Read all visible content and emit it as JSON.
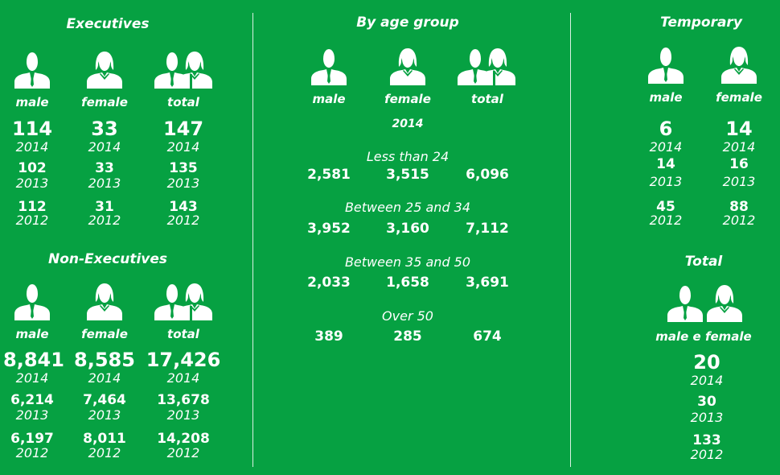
{
  "executives": {
    "title": "Executives",
    "labels": [
      "male",
      "female",
      "total"
    ],
    "rows": [
      {
        "year": "2014",
        "values": [
          "114",
          "33",
          "147"
        ]
      },
      {
        "year": "2013",
        "values": [
          "102",
          "33",
          "135"
        ]
      },
      {
        "year": "2012",
        "values": [
          "112",
          "31",
          "143"
        ]
      }
    ]
  },
  "non_executives": {
    "title": "Non-Executives",
    "labels": [
      "male",
      "female",
      "total"
    ],
    "rows": [
      {
        "year": "2014",
        "values": [
          "8,841",
          "8,585",
          "17,426"
        ]
      },
      {
        "year": "2013",
        "values": [
          "6,214",
          "7,464",
          "13,678"
        ]
      },
      {
        "year": "2012",
        "values": [
          "6,197",
          "8,011",
          "14,208"
        ]
      }
    ]
  },
  "age_group": {
    "title": "By age group",
    "labels": [
      "male",
      "female",
      "total"
    ],
    "year": "2014",
    "groups": [
      {
        "label": "Less than 24",
        "values": [
          "2,581",
          "3,515",
          "6,096"
        ]
      },
      {
        "label": "Between 25 and 34",
        "values": [
          "3,952",
          "3,160",
          "7,112"
        ]
      },
      {
        "label": "Between 35 and 50",
        "values": [
          "2,033",
          "1,658",
          "3,691"
        ]
      },
      {
        "label": "Over 50",
        "values": [
          "389",
          "285",
          "674"
        ]
      }
    ]
  },
  "temporary": {
    "title": "Temporary",
    "labels": [
      "male",
      "female"
    ],
    "rows": [
      {
        "year": "2014",
        "values": [
          "6",
          "14"
        ]
      },
      {
        "year": "2013",
        "values": [
          "14",
          "16"
        ]
      },
      {
        "year": "2012",
        "values": [
          "45",
          "88"
        ]
      }
    ]
  },
  "total": {
    "title": "Total",
    "label": "male e female",
    "rows": [
      {
        "year": "2014",
        "value": "20"
      },
      {
        "year": "2013",
        "value": "30"
      },
      {
        "year": "2012",
        "value": "133"
      }
    ]
  },
  "colors": {
    "background": "#06a142",
    "foreground": "#ffffff"
  },
  "chart_data": {
    "type": "table",
    "tables": [
      {
        "title": "Executives",
        "columns": [
          "male",
          "female",
          "total"
        ],
        "rows": [
          {
            "year": 2014,
            "values": [
              114,
              33,
              147
            ]
          },
          {
            "year": 2013,
            "values": [
              102,
              33,
              135
            ]
          },
          {
            "year": 2012,
            "values": [
              112,
              31,
              143
            ]
          }
        ]
      },
      {
        "title": "Non-Executives",
        "columns": [
          "male",
          "female",
          "total"
        ],
        "rows": [
          {
            "year": 2014,
            "values": [
              8841,
              8585,
              17426
            ]
          },
          {
            "year": 2013,
            "values": [
              6214,
              7464,
              13678
            ]
          },
          {
            "year": 2012,
            "values": [
              6197,
              8011,
              14208
            ]
          }
        ]
      },
      {
        "title": "By age group",
        "year": 2014,
        "columns": [
          "male",
          "female",
          "total"
        ],
        "rows": [
          {
            "group": "Less than 24",
            "values": [
              2581,
              3515,
              6096
            ]
          },
          {
            "group": "Between 25 and 34",
            "values": [
              3952,
              3160,
              7112
            ]
          },
          {
            "group": "Between 35 and 50",
            "values": [
              2033,
              1658,
              3691
            ]
          },
          {
            "group": "Over 50",
            "values": [
              389,
              285,
              674
            ]
          }
        ]
      },
      {
        "title": "Temporary",
        "columns": [
          "male",
          "female"
        ],
        "rows": [
          {
            "year": 2014,
            "values": [
              6,
              14
            ]
          },
          {
            "year": 2013,
            "values": [
              14,
              16
            ]
          },
          {
            "year": 2012,
            "values": [
              45,
              88
            ]
          }
        ]
      },
      {
        "title": "Total",
        "columns": [
          "male e female"
        ],
        "rows": [
          {
            "year": 2014,
            "values": [
              20
            ]
          },
          {
            "year": 2013,
            "values": [
              30
            ]
          },
          {
            "year": 2012,
            "values": [
              133
            ]
          }
        ]
      }
    ]
  }
}
